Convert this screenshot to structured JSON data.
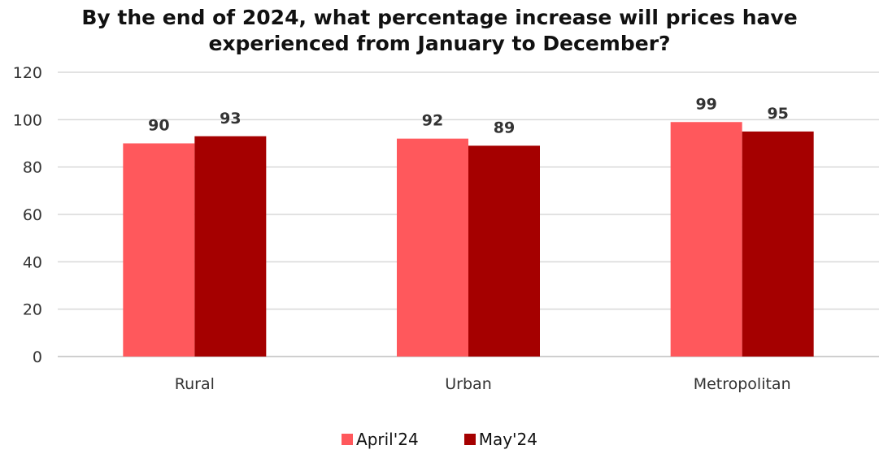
{
  "chart_data": {
    "type": "bar",
    "title_lines": [
      "By the end of 2024, what percentage increase will prices have",
      "experienced from January to December?"
    ],
    "categories": [
      "Rural",
      "Urban",
      "Metropolitan"
    ],
    "series": [
      {
        "name": "April'24",
        "color": "#ff585c",
        "values": [
          90,
          92,
          99
        ]
      },
      {
        "name": "May'24",
        "color": "#a50000",
        "values": [
          93,
          89,
          95
        ]
      }
    ],
    "ylim": [
      0,
      120
    ],
    "yticks": [
      0,
      20,
      40,
      60,
      80,
      100,
      120
    ],
    "grid": true,
    "legend_position": "bottom",
    "data_labels": true
  }
}
